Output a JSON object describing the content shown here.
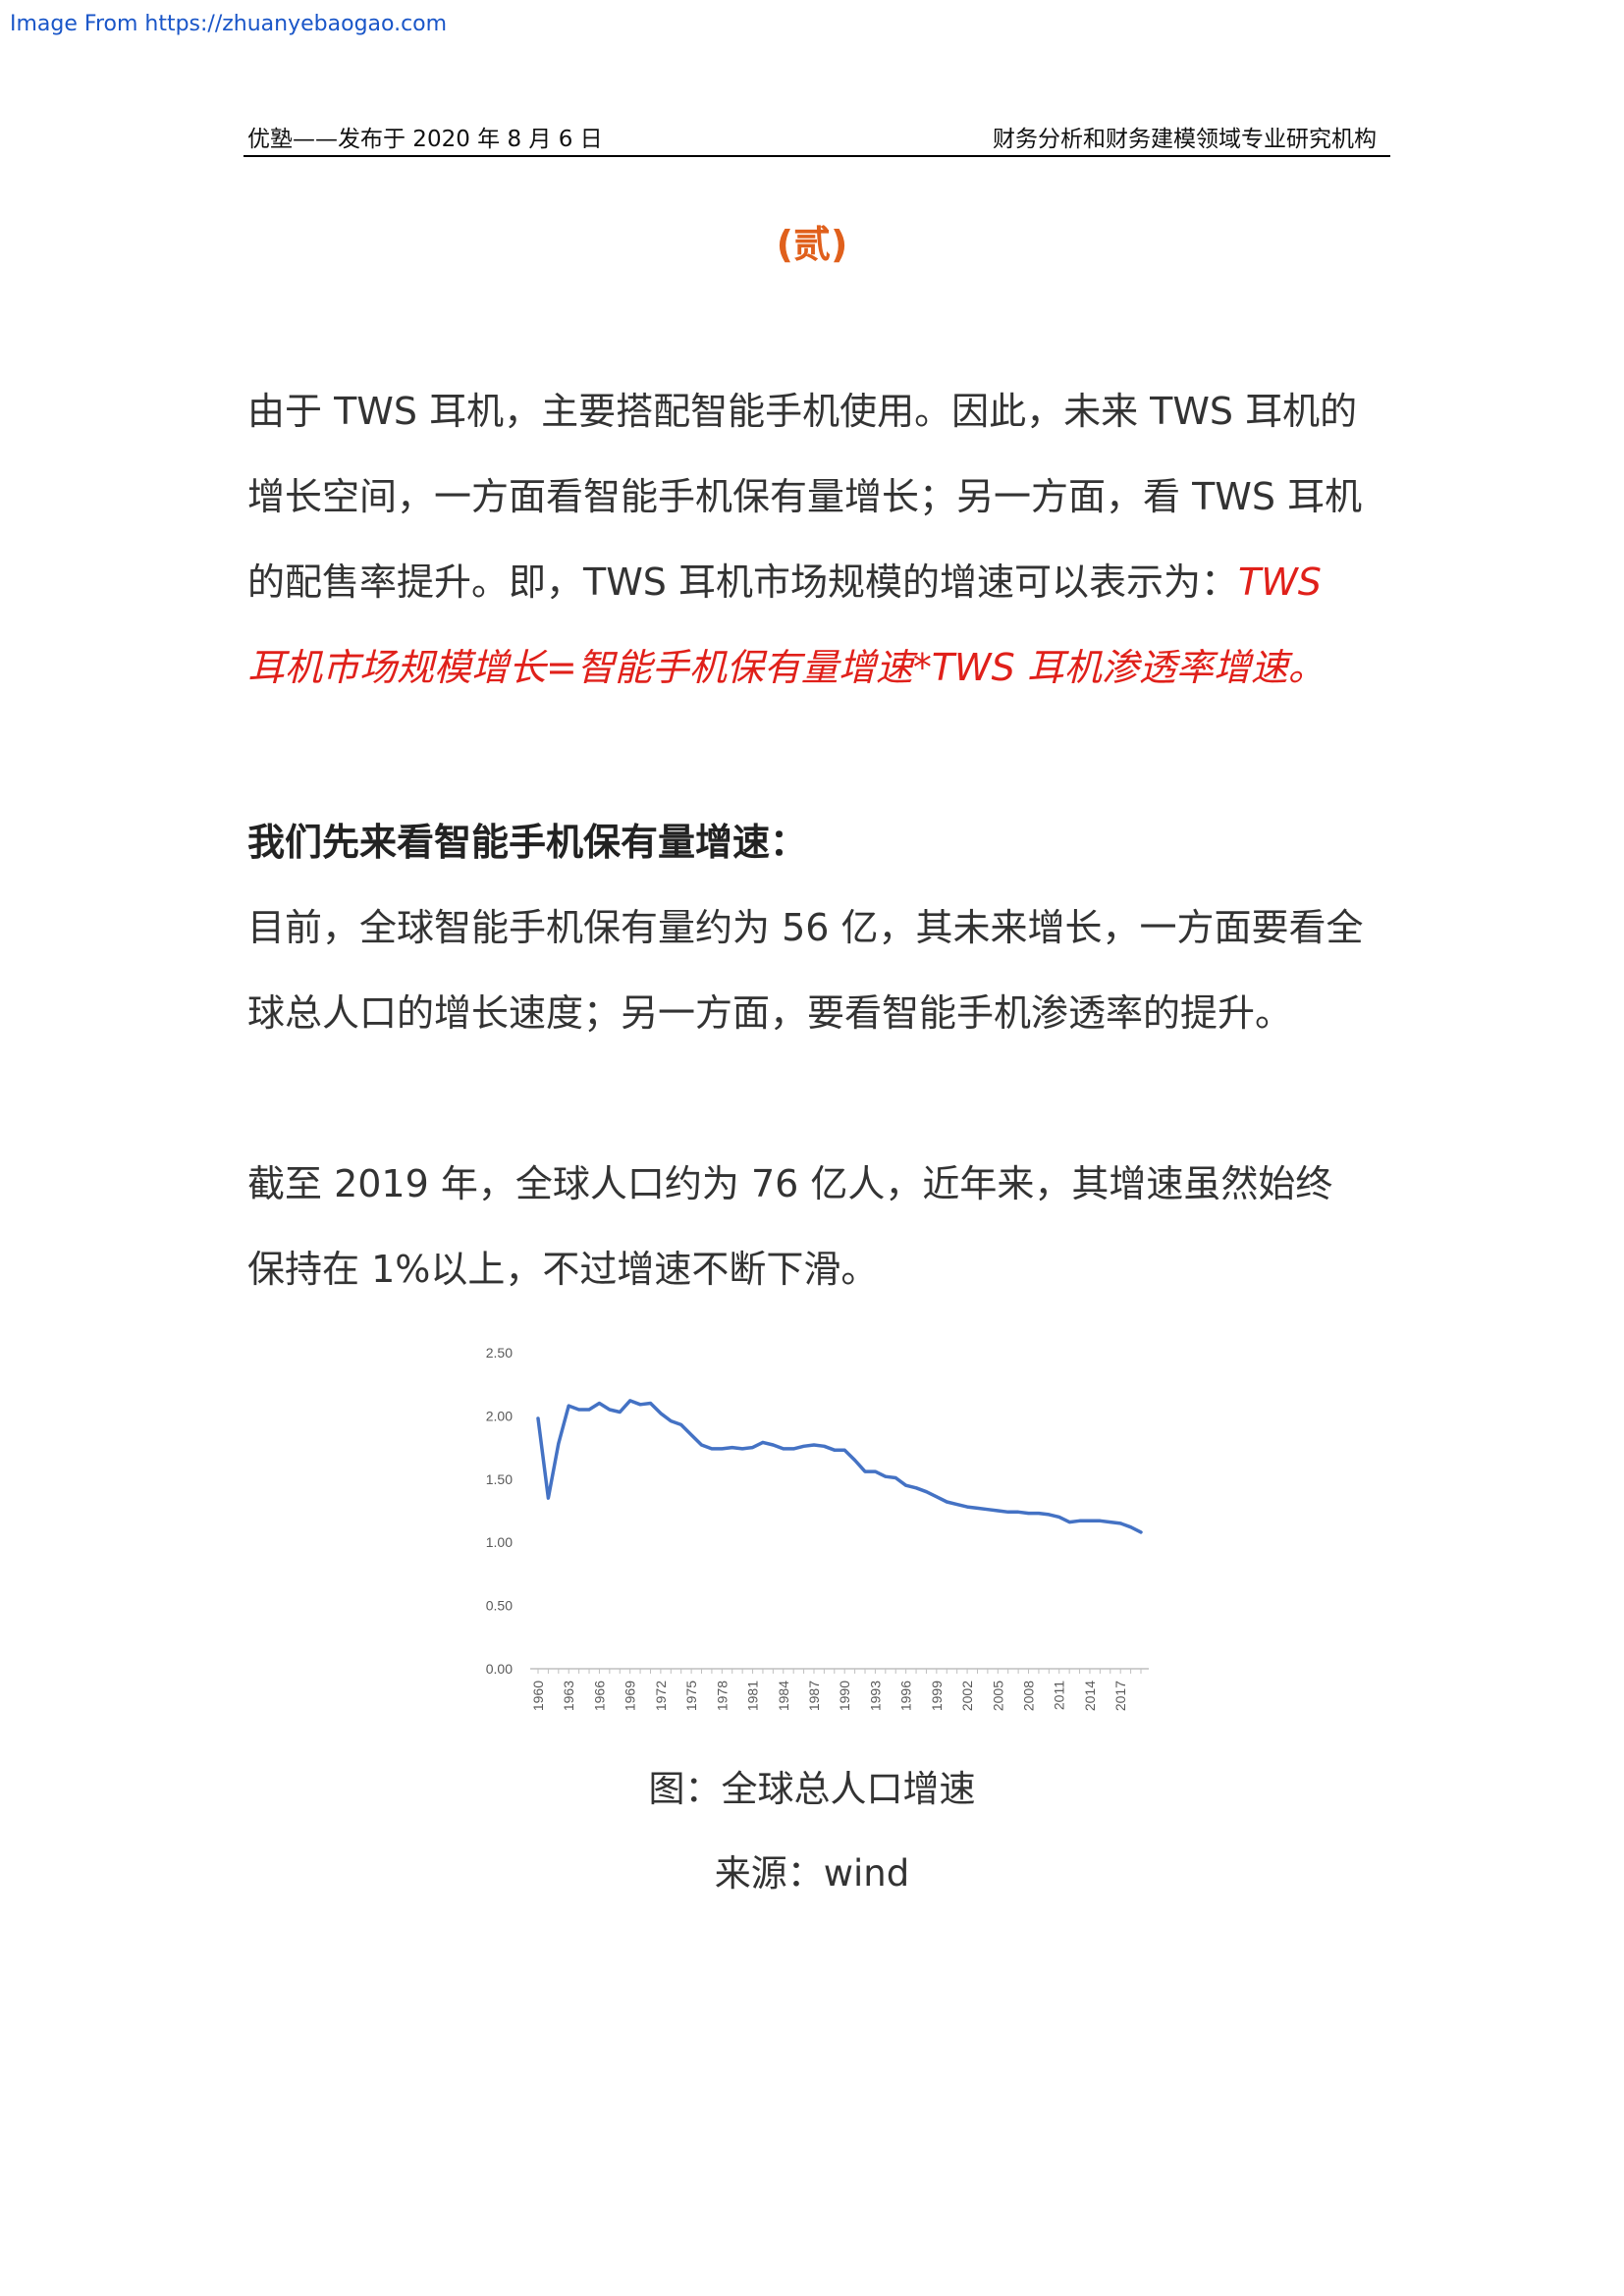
{
  "source_link": "Image From https://zhuanyebaogao.com",
  "header": {
    "left": "优塾——发布于 2020 年 8 月 6 日",
    "right": "财务分析和财务建模领域专业研究机构"
  },
  "section_title": "(贰)",
  "paragraph1": {
    "text": "由于 TWS 耳机，主要搭配智能手机使用。因此，未来 TWS 耳机的增长空间，一方面看智能手机保有量增长；另一方面，看 TWS 耳机的配售率提升。即，TWS 耳机市场规模的增速可以表示为：",
    "highlight": "TWS 耳机市场规模增长=智能手机保有量增速*TWS 耳机渗透率增速。"
  },
  "lead_heading": "我们先来看智能手机保有量增速：",
  "paragraph2": "目前，全球智能手机保有量约为 56 亿，其未来增长，一方面要看全球总人口的增长速度；另一方面，要看智能手机渗透率的提升。",
  "paragraph3": "截至 2019 年，全球人口约为 76 亿人，近年来，其增速虽然始终保持在 1%以上，不过增速不断下滑。",
  "caption": "图：全球总人口增速",
  "source": "来源：wind",
  "chart_data": {
    "type": "line",
    "ylim": [
      0,
      2.5
    ],
    "yticks": [
      "0.00",
      "0.50",
      "1.00",
      "1.50",
      "2.00",
      "2.50"
    ],
    "xticks": [
      "1960",
      "1963",
      "1966",
      "1969",
      "1972",
      "1975",
      "1978",
      "1981",
      "1984",
      "1987",
      "1990",
      "1993",
      "1996",
      "1999",
      "2002",
      "2005",
      "2008",
      "2011",
      "2014",
      "2017"
    ],
    "line_color": "#4472c4",
    "x": [
      1960,
      1961,
      1962,
      1963,
      1964,
      1965,
      1966,
      1967,
      1968,
      1969,
      1970,
      1971,
      1972,
      1973,
      1974,
      1975,
      1976,
      1977,
      1978,
      1979,
      1980,
      1981,
      1982,
      1983,
      1984,
      1985,
      1986,
      1987,
      1988,
      1989,
      1990,
      1991,
      1992,
      1993,
      1994,
      1995,
      1996,
      1997,
      1998,
      1999,
      2000,
      2001,
      2002,
      2003,
      2004,
      2005,
      2006,
      2007,
      2008,
      2009,
      2010,
      2011,
      2012,
      2013,
      2014,
      2015,
      2016,
      2017,
      2018,
      2019
    ],
    "y": [
      1.98,
      1.35,
      1.78,
      2.08,
      2.05,
      2.05,
      2.1,
      2.05,
      2.03,
      2.12,
      2.09,
      2.1,
      2.02,
      1.96,
      1.93,
      1.85,
      1.77,
      1.74,
      1.74,
      1.75,
      1.74,
      1.75,
      1.79,
      1.77,
      1.74,
      1.74,
      1.76,
      1.77,
      1.76,
      1.73,
      1.73,
      1.65,
      1.56,
      1.56,
      1.52,
      1.51,
      1.45,
      1.43,
      1.4,
      1.36,
      1.32,
      1.3,
      1.28,
      1.27,
      1.26,
      1.25,
      1.24,
      1.24,
      1.23,
      1.23,
      1.22,
      1.2,
      1.16,
      1.17,
      1.17,
      1.17,
      1.16,
      1.15,
      1.12,
      1.08
    ]
  }
}
